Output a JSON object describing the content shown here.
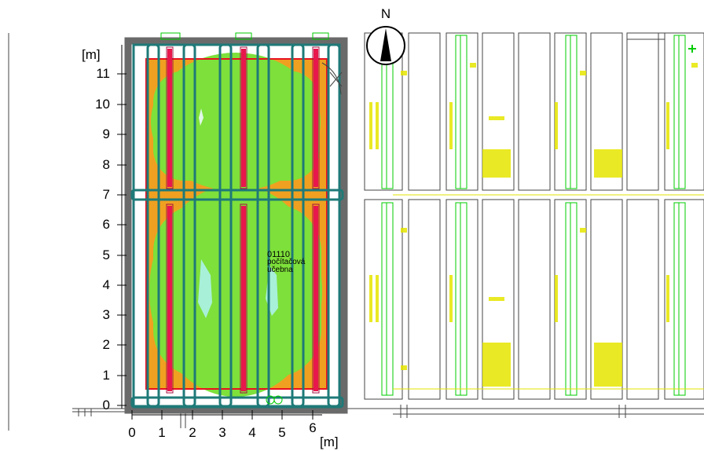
{
  "compass": {
    "label": "N"
  },
  "axes": {
    "y_unit": "[m]",
    "x_unit": "[m]",
    "y_ticks": [
      "0",
      "1",
      "2",
      "3",
      "4",
      "5",
      "6",
      "7",
      "8",
      "9",
      "10",
      "11"
    ],
    "x_ticks": [
      "0",
      "1",
      "2",
      "3",
      "4",
      "5",
      "6"
    ]
  },
  "room": {
    "number": "01110",
    "name_line1": "počítačová",
    "name_line2": "učebna"
  },
  "colors": {
    "zone_orange": "#f0a020",
    "zone_green": "#7ee03a",
    "heater_red": "#e8174c",
    "pipe_teal": "#1e7a78",
    "wall_gray": "#6a6a6a",
    "plan_lines": "#00cc00",
    "plan_annotations": "#e6e600",
    "min_zone": "#a8f0d8"
  }
}
